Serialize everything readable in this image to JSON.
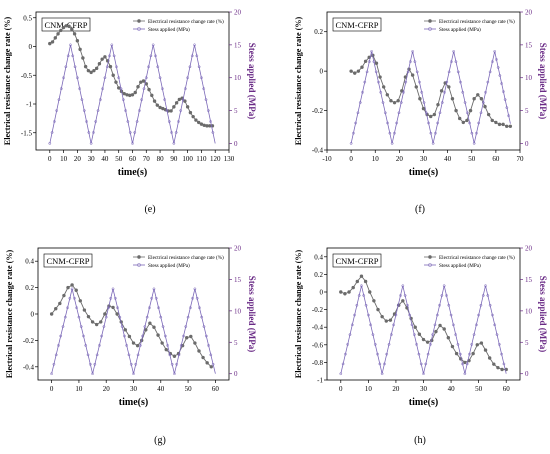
{
  "colors": {
    "resistance": "#6b6b6b",
    "stress": "#7b68b8",
    "right_axis": "#6a2b86",
    "axis": "#000000"
  },
  "chart_data": [
    {
      "type": "line",
      "panel_label": "(e)",
      "sample_label": "CNM-CFRP",
      "xlabel": "time(s)",
      "ylabel": "Electrical resistance change rate (%)",
      "y2label": "Stess applied (MPa)",
      "legend": [
        "Electrical resistance change rate (%)",
        "Stess applied (MPa)"
      ],
      "legend_position": "top-right",
      "xlim": [
        -10,
        130
      ],
      "xticks": [
        0,
        10,
        20,
        30,
        40,
        50,
        60,
        70,
        80,
        90,
        100,
        110,
        120,
        130
      ],
      "ylim": [
        -1.8,
        0.6
      ],
      "yticks": [
        -1.5,
        -1.0,
        -0.5,
        0.0,
        0.5
      ],
      "y2lim": [
        -1.0,
        20
      ],
      "y2ticks": [
        0,
        5,
        10,
        15,
        20
      ],
      "series": [
        {
          "name": "Electrical resistance change rate (%)",
          "axis": "left",
          "x": [
            0,
            2,
            4,
            6,
            8,
            10,
            12,
            14,
            16,
            18,
            20,
            22,
            24,
            26,
            28,
            30,
            32,
            34,
            36,
            38,
            40,
            42,
            44,
            46,
            48,
            50,
            52,
            54,
            56,
            58,
            60,
            62,
            64,
            66,
            68,
            70,
            72,
            74,
            76,
            78,
            80,
            82,
            84,
            86,
            88,
            90,
            92,
            94,
            96,
            98,
            100,
            102,
            104,
            106,
            108,
            110,
            112,
            114,
            116,
            118
          ],
          "y": [
            0.05,
            0.08,
            0.15,
            0.22,
            0.28,
            0.33,
            0.36,
            0.35,
            0.3,
            0.22,
            0.1,
            -0.05,
            -0.2,
            -0.35,
            -0.42,
            -0.45,
            -0.42,
            -0.38,
            -0.3,
            -0.22,
            -0.18,
            -0.25,
            -0.35,
            -0.5,
            -0.62,
            -0.72,
            -0.78,
            -0.82,
            -0.84,
            -0.85,
            -0.84,
            -0.8,
            -0.7,
            -0.62,
            -0.6,
            -0.65,
            -0.75,
            -0.85,
            -0.95,
            -1.02,
            -1.06,
            -1.08,
            -1.1,
            -1.12,
            -1.12,
            -1.05,
            -0.98,
            -0.92,
            -0.9,
            -0.95,
            -1.05,
            -1.15,
            -1.22,
            -1.28,
            -1.32,
            -1.35,
            -1.37,
            -1.38,
            -1.38,
            -1.38
          ]
        },
        {
          "name": "Stess applied (MPa)",
          "axis": "right",
          "x": [
            0,
            15,
            30,
            45,
            60,
            75,
            90,
            105,
            120
          ],
          "y": [
            0,
            15,
            0,
            15,
            0,
            15,
            0,
            15,
            0
          ]
        }
      ]
    },
    {
      "type": "line",
      "panel_label": "(f)",
      "sample_label": "CNM-CFRP",
      "xlabel": "time(s)",
      "ylabel": "Electrical resistance change rate (%)",
      "y2label": "Stess applied (MPa)",
      "legend": [
        "Electrical resistance change rate (%)",
        "Stess applied (MPa)"
      ],
      "legend_position": "top-right",
      "xlim": [
        -10,
        70
      ],
      "xticks": [
        -10,
        0,
        10,
        20,
        30,
        40,
        50,
        60,
        70
      ],
      "ylim": [
        -0.4,
        0.3
      ],
      "yticks": [
        -0.4,
        -0.2,
        0.0,
        0.2
      ],
      "y2lim": [
        -1.0,
        20
      ],
      "y2ticks": [
        0,
        5,
        10,
        15,
        20
      ],
      "series": [
        {
          "name": "Electrical resistance change rate (%)",
          "axis": "left",
          "x": [
            0,
            1.5,
            3,
            4.5,
            6,
            7.5,
            9,
            10.5,
            12,
            13.5,
            15,
            16.5,
            18,
            19.5,
            21,
            22.5,
            24,
            25.5,
            27,
            28.5,
            30,
            31.5,
            33,
            34.5,
            36,
            37.5,
            39,
            40.5,
            42,
            43.5,
            45,
            46.5,
            48,
            49.5,
            51,
            52.5,
            54,
            55.5,
            57,
            58.5,
            60,
            61.5,
            63,
            64.5,
            66
          ],
          "y": [
            0.0,
            -0.01,
            0.0,
            0.02,
            0.05,
            0.07,
            0.08,
            0.04,
            -0.03,
            -0.08,
            -0.12,
            -0.15,
            -0.16,
            -0.15,
            -0.1,
            -0.03,
            0.01,
            -0.02,
            -0.08,
            -0.14,
            -0.19,
            -0.22,
            -0.23,
            -0.22,
            -0.17,
            -0.1,
            -0.06,
            -0.08,
            -0.14,
            -0.2,
            -0.24,
            -0.26,
            -0.25,
            -0.2,
            -0.14,
            -0.12,
            -0.14,
            -0.18,
            -0.22,
            -0.25,
            -0.26,
            -0.27,
            -0.27,
            -0.28,
            -0.28
          ]
        },
        {
          "name": "Stess applied (MPa)",
          "axis": "right",
          "x": [
            0,
            8.5,
            17,
            25.5,
            34,
            42.5,
            51,
            59.5,
            66
          ],
          "y": [
            0,
            14,
            0,
            14,
            0,
            14,
            0,
            14,
            3
          ]
        }
      ]
    },
    {
      "type": "line",
      "panel_label": "(g)",
      "sample_label": "CNM-CFRP",
      "xlabel": "time(s)",
      "ylabel": "Electrical resistance change rate (%)",
      "y2label": "Stess applied (MPa)",
      "legend": [
        "Electrical resistance change rate (%)",
        "Stess applied (MPa)"
      ],
      "legend_position": "top-right",
      "xlim": [
        -5,
        65
      ],
      "xticks": [
        0,
        10,
        20,
        30,
        40,
        50,
        60
      ],
      "ylim": [
        -0.5,
        0.5
      ],
      "yticks": [
        -0.4,
        -0.2,
        0.0,
        0.2,
        0.4
      ],
      "y2lim": [
        -1.0,
        20
      ],
      "y2ticks": [
        0,
        5,
        10,
        15,
        20
      ],
      "series": [
        {
          "name": "Electrical resistance change rate (%)",
          "axis": "left",
          "x": [
            0,
            1.5,
            3,
            4.5,
            6,
            7.5,
            9,
            10.5,
            12,
            13.5,
            15,
            16.5,
            18,
            19.5,
            21,
            22.5,
            24,
            25.5,
            27,
            28.5,
            30,
            31.5,
            33,
            34.5,
            36,
            37.5,
            39,
            40.5,
            42,
            43.5,
            45,
            46.5,
            48,
            49.5,
            51,
            52.5,
            54,
            55.5,
            57,
            58.5
          ],
          "y": [
            0.0,
            0.04,
            0.08,
            0.14,
            0.2,
            0.22,
            0.18,
            0.1,
            0.03,
            -0.02,
            -0.06,
            -0.08,
            -0.06,
            0.0,
            0.06,
            0.05,
            0.0,
            -0.06,
            -0.12,
            -0.17,
            -0.22,
            -0.24,
            -0.2,
            -0.12,
            -0.07,
            -0.1,
            -0.16,
            -0.22,
            -0.27,
            -0.3,
            -0.32,
            -0.3,
            -0.24,
            -0.18,
            -0.17,
            -0.22,
            -0.28,
            -0.33,
            -0.37,
            -0.4
          ]
        },
        {
          "name": "Stess applied (MPa)",
          "axis": "right",
          "x": [
            0,
            7.5,
            15,
            22.5,
            30,
            37.5,
            45,
            52.5,
            60
          ],
          "y": [
            0,
            13.5,
            0,
            13.5,
            0,
            13.5,
            0,
            13.5,
            0
          ]
        }
      ]
    },
    {
      "type": "line",
      "panel_label": "(h)",
      "sample_label": "CNM-CFRP",
      "xlabel": "time(s)",
      "ylabel": "Electrical resistance change rate (%)",
      "y2label": "Stess applied (MPa)",
      "legend": [
        "Electrical resistance change rate (%)",
        "Stess applied (MPa)"
      ],
      "legend_position": "top-right",
      "xlim": [
        -5,
        65
      ],
      "xticks": [
        0,
        10,
        20,
        30,
        40,
        50,
        60
      ],
      "ylim": [
        -1.0,
        0.5
      ],
      "yticks": [
        -1.0,
        -0.8,
        -0.6,
        -0.4,
        -0.2,
        0.0,
        0.2,
        0.4
      ],
      "y2lim": [
        -1.0,
        20
      ],
      "y2ticks": [
        0,
        5,
        10,
        15,
        20
      ],
      "series": [
        {
          "name": "Electrical resistance change rate (%)",
          "axis": "left",
          "x": [
            0,
            1.5,
            3,
            4.5,
            6,
            7.5,
            9,
            10.5,
            12,
            13.5,
            15,
            16.5,
            18,
            19.5,
            21,
            22.5,
            24,
            25.5,
            27,
            28.5,
            30,
            31.5,
            33,
            34.5,
            36,
            37.5,
            39,
            40.5,
            42,
            43.5,
            45,
            46.5,
            48,
            49.5,
            51,
            52.5,
            54,
            55.5,
            57,
            58.5,
            60
          ],
          "y": [
            0.0,
            -0.02,
            0.0,
            0.05,
            0.12,
            0.18,
            0.12,
            0.0,
            -0.1,
            -0.2,
            -0.28,
            -0.33,
            -0.32,
            -0.25,
            -0.15,
            -0.1,
            -0.18,
            -0.3,
            -0.4,
            -0.48,
            -0.54,
            -0.57,
            -0.55,
            -0.45,
            -0.38,
            -0.42,
            -0.52,
            -0.62,
            -0.7,
            -0.76,
            -0.8,
            -0.78,
            -0.7,
            -0.6,
            -0.58,
            -0.66,
            -0.75,
            -0.82,
            -0.86,
            -0.88,
            -0.88
          ]
        },
        {
          "name": "Stess applied (MPa)",
          "axis": "right",
          "x": [
            0,
            7.5,
            15,
            22.5,
            30,
            37.5,
            45,
            52.5,
            60
          ],
          "y": [
            0,
            14,
            0,
            14,
            0,
            14,
            0,
            14,
            0
          ]
        }
      ]
    }
  ]
}
